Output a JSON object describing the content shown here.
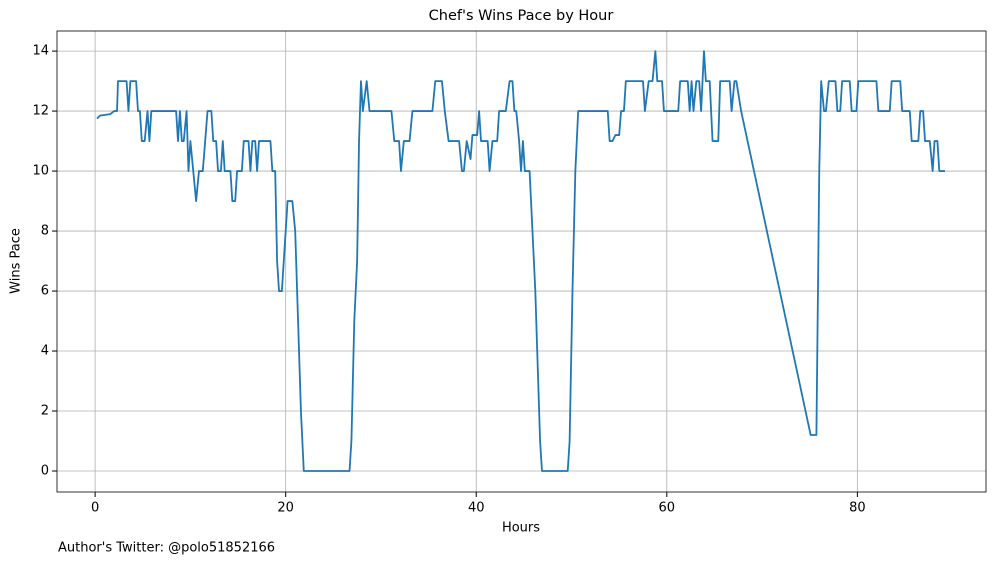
{
  "chart_data": {
    "type": "line",
    "title": "Chef's Wins Pace by Hour",
    "x_label": "Hours",
    "y_label": "Wins Pace",
    "footnote": "Author's Twitter: @polo51852166",
    "color": "#1f77b4",
    "grid": true,
    "xlim": [
      -4,
      93.5
    ],
    "ylim": [
      -0.7,
      14.67
    ],
    "xticks": [
      0,
      20,
      40,
      60,
      80
    ],
    "yticks": [
      0,
      2,
      4,
      6,
      8,
      10,
      12,
      14
    ],
    "x": [
      0.2,
      0.5,
      1.6,
      2.0,
      2.3,
      2.4,
      3.3,
      3.5,
      3.7,
      4.3,
      4.5,
      4.7,
      4.9,
      5.2,
      5.5,
      5.7,
      5.9,
      8.5,
      8.7,
      8.9,
      9.1,
      9.3,
      9.6,
      9.8,
      10.0,
      10.3,
      10.6,
      10.9,
      11.3,
      11.8,
      12.2,
      12.4,
      12.7,
      12.9,
      13.2,
      13.4,
      13.6,
      14.2,
      14.4,
      14.7,
      14.9,
      15.4,
      15.6,
      16.1,
      16.3,
      16.5,
      16.8,
      17.0,
      17.2,
      18.4,
      18.6,
      18.9,
      19.1,
      19.3,
      19.6,
      19.8,
      20.2,
      20.7,
      21.0,
      21.3,
      21.6,
      21.9,
      26.7,
      26.9,
      27.2,
      27.5,
      27.7,
      27.9,
      28.1,
      28.5,
      28.8,
      31.1,
      31.4,
      31.9,
      32.1,
      32.4,
      33.0,
      33.3,
      35.4,
      35.7,
      36.4,
      36.7,
      37.1,
      38.2,
      38.5,
      38.7,
      39.0,
      39.4,
      39.6,
      40.1,
      40.3,
      40.5,
      41.2,
      41.4,
      41.7,
      42.2,
      42.4,
      43.1,
      43.5,
      43.8,
      44.0,
      44.2,
      44.5,
      44.7,
      44.9,
      45.1,
      45.6,
      45.9,
      46.2,
      46.5,
      46.7,
      46.9,
      49.6,
      49.8,
      50.1,
      50.4,
      50.7,
      53.8,
      54.0,
      54.3,
      54.6,
      55.0,
      55.2,
      55.5,
      55.7,
      57.5,
      57.7,
      58.1,
      58.5,
      58.8,
      59.0,
      59.5,
      59.7,
      61.2,
      61.4,
      62.2,
      62.4,
      62.6,
      62.8,
      63.1,
      63.4,
      63.6,
      63.9,
      64.1,
      64.5,
      64.8,
      65.4,
      65.6,
      66.6,
      66.8,
      67.1,
      67.3,
      67.8,
      75.1,
      75.7,
      76.0,
      76.2,
      76.5,
      76.7,
      77.0,
      77.7,
      77.9,
      78.2,
      78.4,
      79.2,
      79.4,
      79.9,
      80.1,
      82.0,
      82.2,
      83.4,
      83.6,
      84.5,
      84.7,
      85.5,
      85.7,
      86.4,
      86.6,
      86.9,
      87.1,
      87.6,
      87.9,
      88.1,
      88.4,
      88.6,
      89.2
    ],
    "values": [
      11.75,
      11.85,
      11.9,
      12,
      12,
      13,
      13,
      12,
      13,
      13,
      12,
      12,
      11,
      11,
      12,
      11,
      12,
      12,
      11,
      12,
      11,
      11,
      12,
      10,
      11,
      10,
      9,
      10,
      10,
      12,
      12,
      11,
      11,
      10,
      10,
      11,
      10,
      10,
      9,
      9,
      10,
      10,
      11,
      11,
      10,
      11,
      11,
      10,
      11,
      11,
      10,
      10,
      7,
      6,
      6,
      7,
      9,
      9,
      8,
      5,
      2,
      0,
      0,
      1,
      5,
      7,
      11,
      13,
      12,
      13,
      12,
      12,
      11,
      11,
      10,
      11,
      11,
      12,
      12,
      13,
      13,
      12,
      11,
      11,
      10,
      10,
      11,
      10.4,
      11.2,
      11.2,
      12,
      11,
      11,
      10,
      11,
      11,
      12,
      12,
      13,
      13,
      12,
      12,
      11,
      10,
      11,
      10,
      10,
      8,
      6,
      3,
      1,
      0,
      0,
      1,
      6,
      10,
      12,
      12,
      11,
      11,
      11.2,
      11.2,
      12,
      12,
      13,
      13,
      12,
      13,
      13,
      14,
      13,
      13,
      12,
      12,
      13,
      13,
      12,
      13,
      12,
      13,
      13,
      12,
      14,
      13,
      13,
      11,
      11,
      13,
      13,
      12,
      13,
      13,
      12,
      1.2,
      1.2,
      10,
      13,
      12,
      12,
      13,
      13,
      12,
      12,
      13,
      13,
      12,
      12,
      13,
      13,
      12,
      12,
      13,
      13,
      12,
      12,
      11,
      11,
      12,
      12,
      11,
      11,
      10,
      11,
      11,
      10,
      10
    ]
  }
}
